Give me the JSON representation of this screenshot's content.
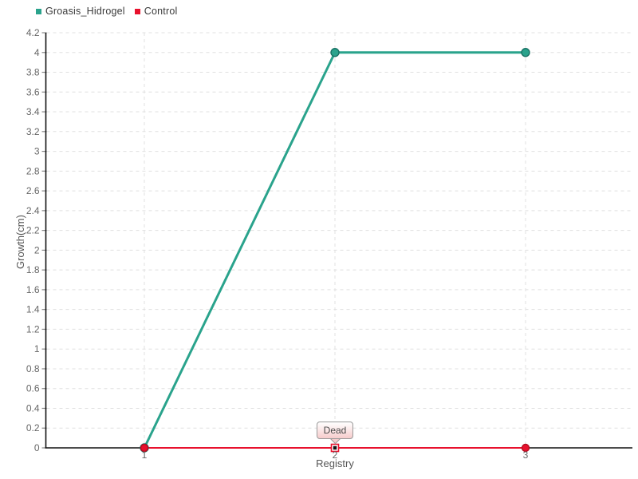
{
  "chart_data": {
    "type": "line",
    "title": "",
    "xlabel": "Registry",
    "ylabel": "Growth(cm)",
    "x": [
      1,
      2,
      3
    ],
    "x_tick_labels": [
      "1",
      "2",
      "3"
    ],
    "ylim": [
      0,
      4.2
    ],
    "y_tick_step": 0.2,
    "grid": true,
    "legend_position": "top-left",
    "series": [
      {
        "name": "Groasis_Hidrogel",
        "color": "#2aa38c",
        "marker_stroke": "#1a7265",
        "marker": "circle",
        "line_width": 3,
        "values": [
          0,
          4,
          4
        ]
      },
      {
        "name": "Control",
        "color": "#e8112d",
        "marker_stroke": "#b50e22",
        "marker": "circle",
        "line_width": 2,
        "values": [
          0,
          0,
          0
        ],
        "dead_point_index": 1
      }
    ],
    "annotation": {
      "text": "Dead",
      "x": 2,
      "y": 0,
      "series": "Control"
    }
  },
  "colors": {
    "background": "#ffffff",
    "grid": "#e0e0e0",
    "axis": "#111111",
    "tick": "#888888",
    "tick_text": "#666666",
    "axis_title_text": "#555555",
    "tooltip_border": "#999999",
    "tooltip_bg_top": "#ffffff",
    "tooltip_bg_bottom": "#f6cccc",
    "dead_marker_fill": "#ffffff",
    "dead_marker_inner": "#111111"
  }
}
